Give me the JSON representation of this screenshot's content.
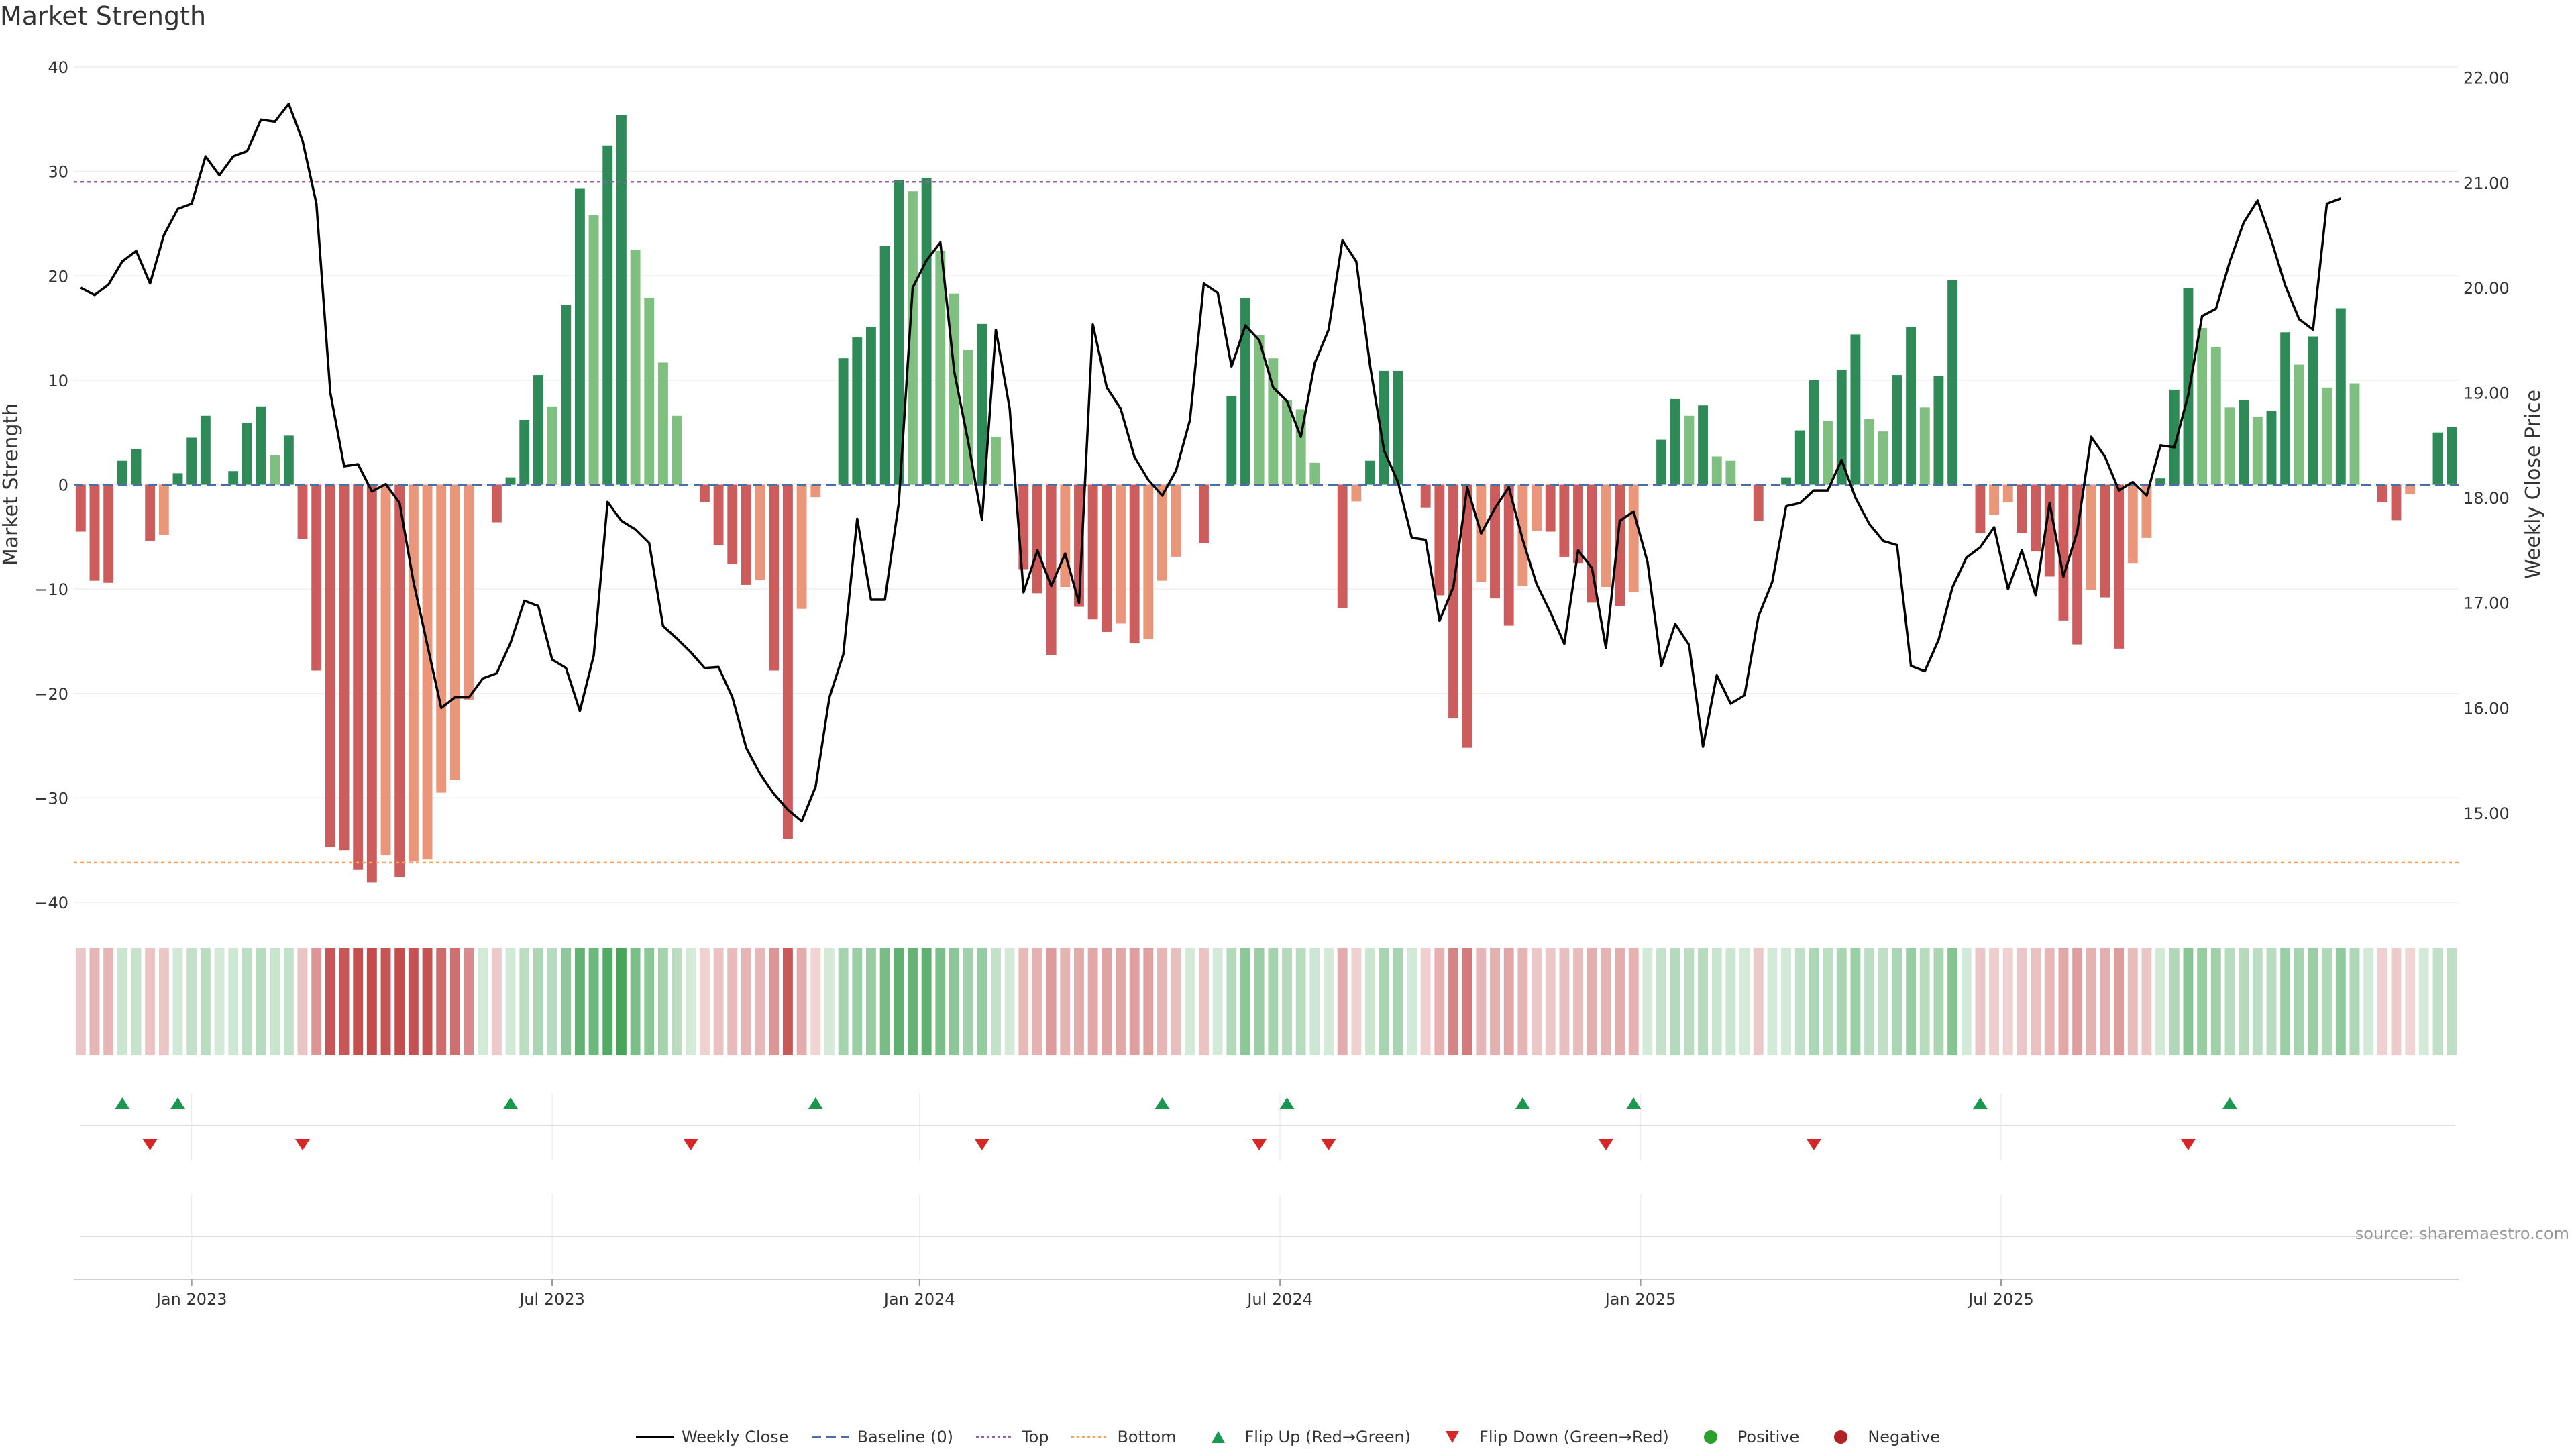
{
  "title": "Market Strength",
  "source": "source: sharemaestro.com",
  "colors": {
    "strong_green": "#2e8b57",
    "light_green": "#7fbf7f",
    "strong_red": "#cd5c5c",
    "light_red": "#e9967a",
    "price_line": "#000000",
    "top_line": "#9b59b6",
    "bottom_line": "#f4a460",
    "baseline": "#4a6fa5",
    "flip_up": "#1a9850",
    "flip_down": "#d62728",
    "positive": "#2ca02c",
    "negative": "#b22222"
  },
  "chart_data": {
    "type": "bar+line",
    "title": "Market Strength",
    "ylabel_left": "Market Strength",
    "ylabel_right": "Weekly Close Price",
    "y_left_ticks": [
      "40",
      "30",
      "20",
      "10",
      "0",
      "-10",
      "-20",
      "-30",
      "-40"
    ],
    "y_left_range": [
      -40,
      40
    ],
    "y_right_ticks": [
      "22.00",
      "21.00",
      "20.00",
      "19.00",
      "18.00",
      "17.00",
      "16.00",
      "15.00"
    ],
    "y_right_range": [
      14.15,
      22.1
    ],
    "x_tick_labels": [
      "Jan 2023",
      "Jul 2023",
      "Jan 2024",
      "Jul 2024",
      "Jan 2025",
      "Jul 2025"
    ],
    "x_tick_weeks": [
      8,
      34,
      60.5,
      86.5,
      112.5,
      138.5
    ],
    "top_level": 29,
    "bottom_level": -36.2,
    "strength": [
      -4.5,
      -9.2,
      -9.4,
      2.3,
      3.4,
      -5.4,
      -4.8,
      1.1,
      4.5,
      6.6,
      0,
      1.3,
      5.9,
      7.5,
      2.8,
      4.7,
      -5.2,
      -17.8,
      -34.7,
      -35,
      -36.9,
      -38.1,
      -35.5,
      -37.6,
      -36.1,
      -35.9,
      -29.5,
      -28.3,
      -20.6,
      0,
      -3.6,
      0.7,
      6.2,
      10.5,
      7.5,
      17.2,
      28.4,
      25.8,
      32.5,
      35.4,
      22.5,
      17.9,
      11.7,
      6.6,
      0,
      -1.7,
      -5.8,
      -7.6,
      -9.6,
      -9.1,
      -17.8,
      -33.9,
      -11.9,
      -1.2,
      0,
      12.1,
      14.1,
      15.1,
      22.9,
      29.2,
      28.1,
      29.4,
      22.4,
      18.3,
      12.9,
      15.4,
      4.6,
      0,
      -8.1,
      -10.4,
      -16.3,
      -9.8,
      -11.7,
      -12.9,
      -14.1,
      -13.3,
      -15.2,
      -14.8,
      -9.2,
      -6.9,
      0,
      -5.6,
      0,
      8.5,
      17.9,
      14.3,
      12.1,
      8.1,
      7.2,
      2.1,
      0,
      -11.8,
      -1.6,
      2.3,
      10.9,
      10.9,
      0,
      -2.2,
      -10.6,
      -22.4,
      -25.2,
      -9.3,
      -10.9,
      -13.5,
      -9.7,
      -4.4,
      -4.5,
      -6.9,
      -7.5,
      -11.3,
      -9.8,
      -11.6,
      -10.3,
      0,
      4.3,
      8.2,
      6.6,
      7.6,
      2.7,
      2.3,
      0,
      -3.5,
      0,
      0.7,
      5.2,
      10,
      6.1,
      11,
      14.4,
      6.3,
      5.1,
      10.5,
      15.1,
      7.4,
      10.4,
      19.6,
      0,
      -4.6,
      -2.9,
      -1.7,
      -4.6,
      -6.4,
      -8.8,
      -13,
      -15.3,
      -10.1,
      -10.8,
      -15.7,
      -7.5,
      -5.1,
      0.6,
      9.1,
      18.8,
      15,
      13.2,
      7.4,
      8.1,
      6.5,
      7.1,
      14.6,
      11.5,
      14.2,
      9.3,
      16.9,
      9.7,
      0,
      -1.7,
      -3.4,
      -0.9,
      0,
      5,
      5.5
    ],
    "weekly_close": [
      20.0,
      19.93,
      20.03,
      20.25,
      20.35,
      20.04,
      20.5,
      20.75,
      20.8,
      21.25,
      21.07,
      21.25,
      21.3,
      21.6,
      21.58,
      21.75,
      21.4,
      20.8,
      19.0,
      18.3,
      18.32,
      18.06,
      18.13,
      17.95,
      17.2,
      16.6,
      16.0,
      16.1,
      16.1,
      16.28,
      16.33,
      16.62,
      17.02,
      16.97,
      16.46,
      16.38,
      15.97,
      16.5,
      17.96,
      17.78,
      17.7,
      17.57,
      16.78,
      16.66,
      16.53,
      16.38,
      16.39,
      16.1,
      15.62,
      15.37,
      15.18,
      15.03,
      14.92,
      15.25,
      16.1,
      16.51,
      17.8,
      17.03,
      17.03,
      17.95,
      20.0,
      20.26,
      20.43,
      19.2,
      18.54,
      17.79,
      19.6,
      18.85,
      17.1,
      17.5,
      17.16,
      17.47,
      17.0,
      19.65,
      19.05,
      18.85,
      18.39,
      18.17,
      18.02,
      18.26,
      18.74,
      20.04,
      19.95,
      19.25,
      19.64,
      19.5,
      19.05,
      18.92,
      18.58,
      19.28,
      19.6,
      20.45,
      20.25,
      19.25,
      18.45,
      18.15,
      17.62,
      17.6,
      16.83,
      17.15,
      18.1,
      17.66,
      17.9,
      18.1,
      17.6,
      17.18,
      16.91,
      16.61,
      17.5,
      17.33,
      16.57,
      17.78,
      17.87,
      17.39,
      16.4,
      16.8,
      16.6,
      15.63,
      16.31,
      16.04,
      16.12,
      16.87,
      17.2,
      17.92,
      17.95,
      18.07,
      18.07,
      18.36,
      18.0,
      17.75,
      17.59,
      17.55,
      16.4,
      16.35,
      16.65,
      17.15,
      17.43,
      17.53,
      17.72,
      17.13,
      17.5,
      17.07,
      17.95,
      17.25,
      17.68,
      18.58,
      18.39,
      18.07,
      18.15,
      18.02,
      18.5,
      18.48,
      18.98,
      19.73,
      19.8,
      20.25,
      20.62,
      20.83,
      20.45,
      20.02,
      19.7,
      19.6,
      20.8,
      20.85
    ],
    "flip_up_weeks": [
      3,
      7,
      31,
      53,
      78,
      87,
      104,
      112,
      137,
      155
    ],
    "flip_down_weeks": [
      5,
      16,
      44,
      65,
      85,
      90,
      110,
      125,
      152
    ],
    "legend": [
      "Weekly Close",
      "Baseline (0)",
      "Top",
      "Bottom",
      "Flip Up (Red→Green)",
      "Flip Down (Green→Red)",
      "Positive",
      "Negative"
    ]
  }
}
